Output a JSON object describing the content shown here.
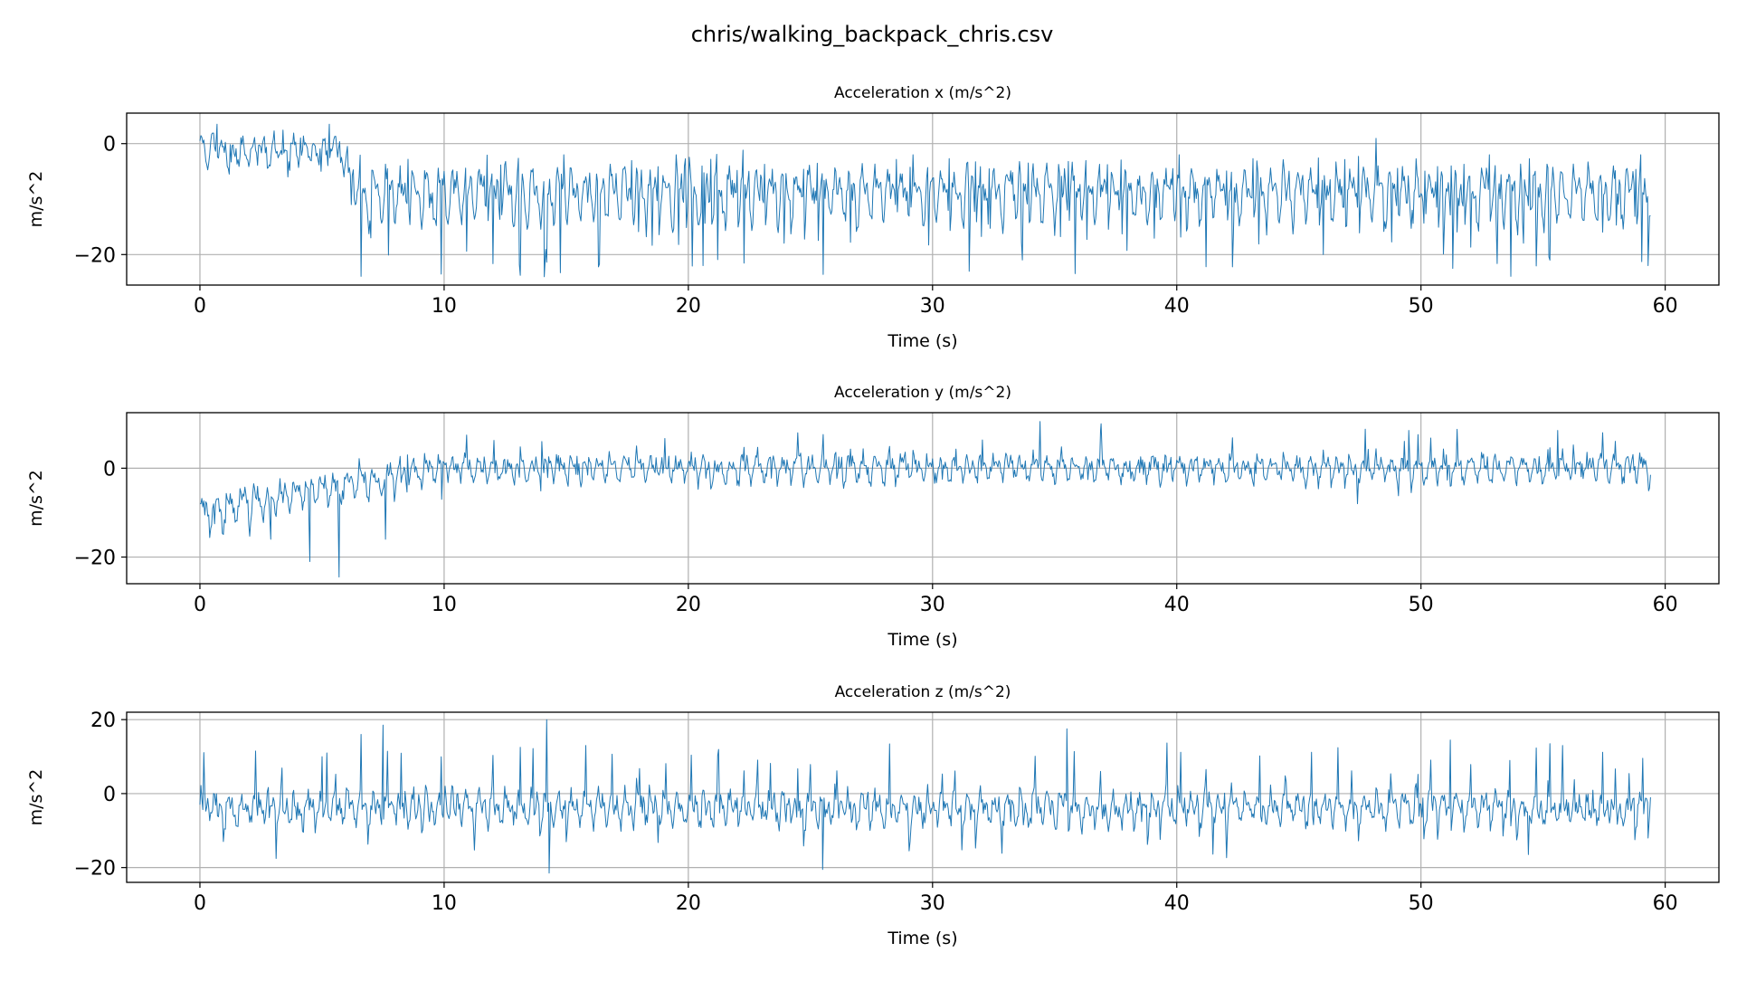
{
  "figure": {
    "title": "chris/walking_backpack_chris.csv"
  },
  "chart_data": [
    {
      "type": "line",
      "title": "Acceleration x (m/s^2)",
      "xlabel": "Time (s)",
      "ylabel": "m/s^2",
      "xlim": [
        -3,
        62.2
      ],
      "ylim": [
        -25.5,
        5.5
      ],
      "xticks": [
        0,
        10,
        20,
        30,
        40,
        50,
        60
      ],
      "yticks": [
        0,
        -20
      ],
      "grid": true,
      "series": [
        {
          "color": "#1f77b4",
          "model": {
            "phase1_end": 5.6,
            "phase1_mean": -1.2,
            "phase1_amp": 3.2,
            "ramp_end": 6.6,
            "mean": -9.0,
            "amp": 5.5,
            "dip_min": -24.0,
            "peak_max": -1.5,
            "step_hz": 1.85,
            "seed": 11
          },
          "points": [
            [
              0,
              0.5
            ],
            [
              0.7,
              3.5
            ],
            [
              1.2,
              -5.5
            ],
            [
              3.6,
              -6.0
            ],
            [
              5.3,
              3.5
            ],
            [
              5.9,
              -6.0
            ],
            [
              6.2,
              -11.0
            ],
            [
              7.0,
              -17.0
            ],
            [
              10.0,
              -5.0
            ],
            [
              14.1,
              -24.0
            ],
            [
              14.9,
              -2.0
            ],
            [
              19.5,
              -2.0
            ],
            [
              20.6,
              -22.0
            ],
            [
              29.2,
              -2.0
            ],
            [
              31.5,
              -23.0
            ],
            [
              40.1,
              -2.0
            ],
            [
              46.0,
              -20.0
            ],
            [
              51.3,
              -22.5
            ],
            [
              52.8,
              -2.0
            ],
            [
              59.0,
              -2.0
            ],
            [
              59.3,
              -22.0
            ],
            [
              59.4,
              -13.0
            ]
          ]
        }
      ]
    },
    {
      "type": "line",
      "title": "Acceleration y (m/s^2)",
      "xlabel": "Time (s)",
      "ylabel": "m/s^2",
      "xlim": [
        -3,
        62.2
      ],
      "ylim": [
        -26,
        12.5
      ],
      "xticks": [
        0,
        10,
        20,
        30,
        40,
        50,
        60
      ],
      "yticks": [
        0,
        -20
      ],
      "grid": true,
      "series": [
        {
          "color": "#1f77b4",
          "model": {
            "start_mean": -10.0,
            "settle_end": 10.0,
            "mean": 0.0,
            "amp": 3.0,
            "peak_max": 10.0,
            "step_hz": 1.85,
            "seed": 23
          },
          "points": [
            [
              0,
              -8.0
            ],
            [
              0.6,
              -12.5
            ],
            [
              2.9,
              -16.0
            ],
            [
              4.5,
              -21.0
            ],
            [
              5.7,
              -24.5
            ],
            [
              7.6,
              -16.0
            ],
            [
              8.5,
              3.0
            ],
            [
              9.9,
              -7.0
            ],
            [
              14.0,
              6.0
            ],
            [
              34.4,
              10.5
            ],
            [
              36.9,
              10.0
            ],
            [
              47.4,
              -8.0
            ],
            [
              49.5,
              8.5
            ],
            [
              55.6,
              8.5
            ],
            [
              59.4,
              -1.5
            ]
          ]
        }
      ]
    },
    {
      "type": "line",
      "title": "Acceleration z (m/s^2)",
      "xlabel": "Time (s)",
      "ylabel": "m/s^2",
      "xlim": [
        -3,
        62.2
      ],
      "ylim": [
        -24,
        22
      ],
      "xticks": [
        0,
        10,
        20,
        30,
        40,
        50,
        60
      ],
      "yticks": [
        20,
        0,
        -20
      ],
      "grid": true,
      "series": [
        {
          "color": "#1f77b4",
          "model": {
            "mean": -4.0,
            "amp": 4.5,
            "dip_min": -20.0,
            "peak_max": 19.0,
            "step_hz": 1.85,
            "seed": 37
          },
          "points": [
            [
              0,
              -3.0
            ],
            [
              0.2,
              0.0
            ],
            [
              5.2,
              11.0
            ],
            [
              6.6,
              16.0
            ],
            [
              7.5,
              18.5
            ],
            [
              14.2,
              20.0
            ],
            [
              14.3,
              -21.5
            ],
            [
              25.5,
              -20.5
            ],
            [
              35.5,
              17.5
            ],
            [
              51.2,
              14.5
            ],
            [
              54.4,
              -16.5
            ],
            [
              59.3,
              -12.0
            ],
            [
              59.4,
              -1.0
            ]
          ]
        }
      ]
    }
  ]
}
